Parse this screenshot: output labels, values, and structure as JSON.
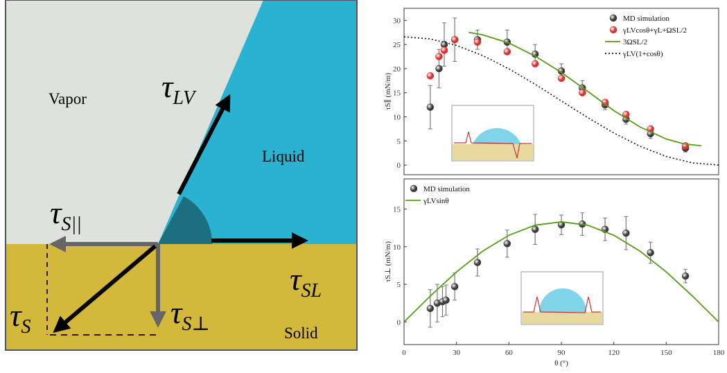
{
  "diagram": {
    "regions": [
      "Vapor",
      "Liquid",
      "Solid"
    ],
    "vectors": [
      {
        "symbol": "τ",
        "subscript": "LV"
      },
      {
        "symbol": "τ",
        "subscript": "S||"
      },
      {
        "symbol": "τ",
        "subscript": "SL"
      },
      {
        "symbol": "τ",
        "subscript": "S"
      },
      {
        "symbol": "τ",
        "subscript": "S⊥"
      }
    ]
  },
  "chart_data": [
    {
      "type": "scatter",
      "ylabel": "τS∥ (mN/m)",
      "xlim": [
        0,
        180
      ],
      "ylim": [
        -2,
        32.5
      ],
      "yticks": [
        0,
        5,
        10,
        15,
        20,
        25,
        30
      ],
      "legend": "upper right",
      "series": [
        {
          "name": "MD simulation",
          "color": "#3a3a3a",
          "style": "marker",
          "x": [
            15,
            20,
            23,
            29,
            42,
            59,
            75,
            90,
            102,
            115,
            127,
            141,
            161
          ],
          "values": [
            12,
            20,
            25,
            26,
            26,
            25.5,
            23,
            19.5,
            16,
            12.5,
            9.5,
            6.5,
            3.5
          ],
          "errors": [
            4.5,
            4,
            4.5,
            4.5,
            2,
            2.5,
            2,
            1.5,
            1.5,
            1,
            1,
            1,
            0.8
          ]
        },
        {
          "name": "γLVcosθ+γL+ΩSL/2",
          "color": "#d93030",
          "style": "marker",
          "x": [
            15,
            20,
            23,
            29,
            42,
            59,
            75,
            90,
            102,
            115,
            127,
            141,
            161
          ],
          "values": [
            18.5,
            22.5,
            23.8,
            26,
            25.5,
            23.5,
            21,
            18,
            15,
            13,
            10.5,
            7.5,
            4
          ]
        },
        {
          "name": "3ΩSL/2",
          "color": "#5a9a1a",
          "style": "line",
          "x": [
            37,
            45,
            60,
            75,
            90,
            105,
            120,
            135,
            150,
            160,
            170
          ],
          "values": [
            27.5,
            27,
            25.3,
            22.6,
            19.2,
            15.3,
            11.3,
            7.9,
            5.4,
            4.4,
            4
          ]
        },
        {
          "name": "γLV(1+cosθ)",
          "color": "#111111",
          "style": "dotted",
          "x": [
            0,
            15,
            30,
            45,
            60,
            75,
            90,
            105,
            120,
            135,
            150,
            165,
            180
          ],
          "values": [
            26.6,
            26.15,
            24.82,
            22.7,
            19.95,
            16.74,
            13.3,
            9.86,
            6.65,
            3.9,
            1.78,
            0.45,
            0
          ]
        }
      ]
    },
    {
      "type": "scatter",
      "ylabel": "τS⊥ (mN/m)",
      "xlabel": "θ (°)",
      "xlim": [
        0,
        180
      ],
      "ylim": [
        -3,
        19
      ],
      "xticks": [
        0,
        30,
        60,
        90,
        120,
        150,
        180
      ],
      "yticks": [
        0,
        5,
        10,
        15
      ],
      "legend": "upper left",
      "series": [
        {
          "name": "MD simulation",
          "color": "#3a3a3a",
          "style": "marker",
          "x": [
            15,
            19,
            22,
            24,
            29,
            42,
            59,
            75,
            90,
            102,
            115,
            127,
            141,
            161
          ],
          "values": [
            1.8,
            2.5,
            2.7,
            2.9,
            4.7,
            7.9,
            10.4,
            12.3,
            12.9,
            13,
            12.3,
            11.8,
            9.2,
            6.1
          ],
          "errors": [
            2.5,
            2.5,
            2,
            2,
            1.8,
            1.8,
            1.8,
            2,
            1.3,
            1.5,
            1.5,
            2.2,
            1.4,
            0.9
          ]
        },
        {
          "name": "γLVsinθ",
          "color": "#5a9a1a",
          "style": "line",
          "x": [
            0,
            15,
            30,
            45,
            60,
            75,
            90,
            105,
            120,
            135,
            150,
            165,
            180
          ],
          "values": [
            0,
            3.44,
            6.65,
            9.4,
            11.52,
            12.85,
            13.3,
            12.85,
            11.52,
            9.4,
            6.65,
            3.44,
            0
          ]
        }
      ]
    }
  ]
}
